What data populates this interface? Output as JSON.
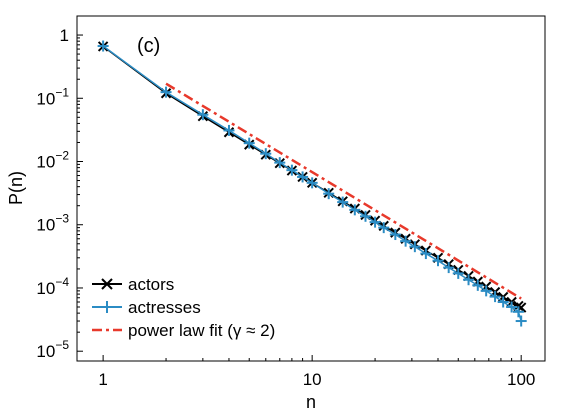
{
  "chart_data": {
    "type": "scatter",
    "panel_label": "(c)",
    "xlabel": "n",
    "ylabel": "P(n)",
    "x_scale": "log",
    "y_scale": "log",
    "xlim": [
      0.75,
      130
    ],
    "ylim": [
      7e-06,
      2
    ],
    "x_ticks": [
      {
        "value": 1,
        "label": "1"
      },
      {
        "value": 10,
        "label": "10"
      },
      {
        "value": 100,
        "label": "100"
      }
    ],
    "y_ticks": [
      {
        "value": 1,
        "base": "1",
        "exp": ""
      },
      {
        "value": 0.1,
        "base": "10",
        "exp": "−1"
      },
      {
        "value": 0.01,
        "base": "10",
        "exp": "−2"
      },
      {
        "value": 0.001,
        "base": "10",
        "exp": "−3"
      },
      {
        "value": 0.0001,
        "base": "10",
        "exp": "−4"
      },
      {
        "value": 1e-05,
        "base": "10",
        "exp": "−5"
      }
    ],
    "grid": false,
    "legend_position": "bottom-left",
    "series": [
      {
        "name": "actors",
        "color": "#000000",
        "marker": "x",
        "x": [
          1,
          2,
          3,
          4,
          5,
          6,
          7,
          8,
          9,
          10,
          12,
          14,
          16,
          18,
          20,
          22,
          25,
          28,
          31,
          35,
          40,
          45,
          50,
          56,
          62,
          68,
          75,
          82,
          90,
          97,
          100
        ],
        "y": [
          0.66,
          0.12,
          0.052,
          0.029,
          0.0185,
          0.0128,
          0.0094,
          0.0072,
          0.0057,
          0.0046,
          0.0032,
          0.00235,
          0.0018,
          0.00143,
          0.00116,
          0.00096,
          0.00075,
          0.0006,
          0.00049,
          0.00039,
          0.0003,
          0.000238,
          0.000193,
          0.000155,
          0.000126,
          0.000105,
          8.6e-05,
          7.2e-05,
          6e-05,
          5.2e-05,
          4.9e-05
        ]
      },
      {
        "name": "actresses",
        "color": "#2b8cc4",
        "marker": "+",
        "x": [
          1,
          2,
          3,
          4,
          5,
          6,
          7,
          8,
          9,
          10,
          12,
          14,
          16,
          18,
          20,
          22,
          25,
          28,
          31,
          35,
          40,
          45,
          50,
          56,
          62,
          68,
          75,
          82,
          90,
          97,
          100
        ],
        "y": [
          0.67,
          0.125,
          0.055,
          0.031,
          0.0195,
          0.0133,
          0.0096,
          0.0073,
          0.0057,
          0.0046,
          0.0031,
          0.00228,
          0.00172,
          0.00136,
          0.0011,
          0.0009,
          0.0007,
          0.00055,
          0.00045,
          0.00035,
          0.00027,
          0.00021,
          0.00017,
          0.000135,
          0.00011,
          9e-05,
          7.3e-05,
          6e-05,
          5e-05,
          4.2e-05,
          3e-05
        ]
      },
      {
        "name": "power law fit (γ ≈ 2)",
        "color": "#e8392b",
        "style": "dash-dot",
        "x": [
          2,
          100
        ],
        "y": [
          0.17,
          6.8e-05
        ]
      }
    ]
  }
}
